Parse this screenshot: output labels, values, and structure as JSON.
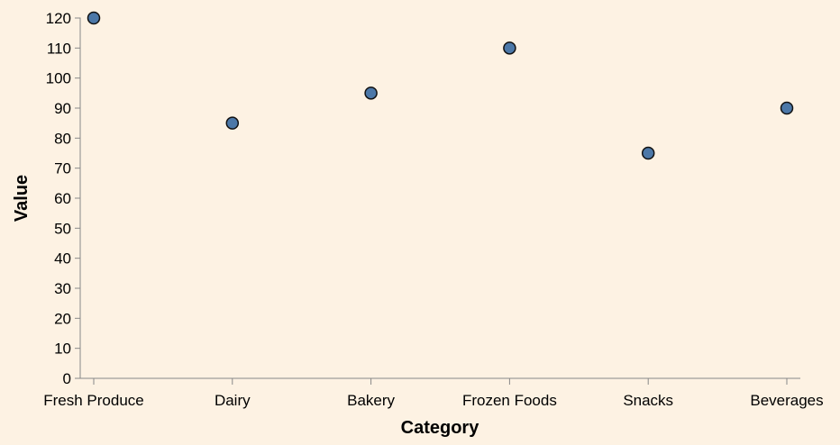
{
  "chart_data": {
    "type": "scatter",
    "title": "",
    "xlabel": "Category",
    "ylabel": "Value",
    "categories": [
      "Fresh Produce",
      "Dairy",
      "Bakery",
      "Frozen Foods",
      "Snacks",
      "Beverages"
    ],
    "values": [
      120,
      85,
      95,
      110,
      75,
      90
    ],
    "ylim": [
      0,
      120
    ],
    "yticks": [
      0,
      10,
      20,
      30,
      40,
      50,
      60,
      70,
      80,
      90,
      100,
      110,
      120
    ],
    "grid": false,
    "legend": "none"
  },
  "colors": {
    "background": "#fdf2e3",
    "point_fill": "#4c78a8",
    "point_stroke": "#111111",
    "axis": "#888888"
  }
}
